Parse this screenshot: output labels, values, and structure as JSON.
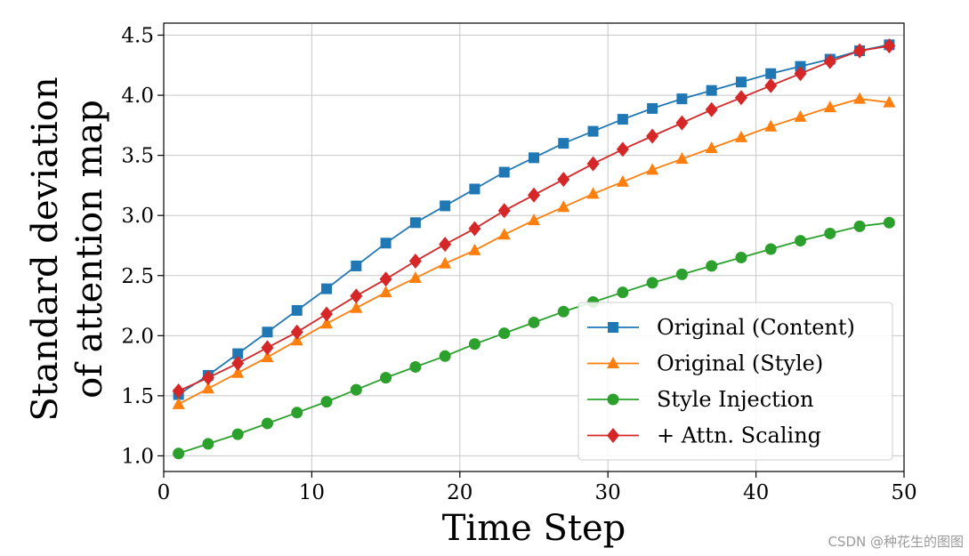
{
  "chart_data": {
    "type": "line",
    "title": "",
    "xlabel": "Time Step",
    "ylabel_lines": [
      "Standard deviation",
      "of attention map"
    ],
    "xlim": [
      0,
      50
    ],
    "ylim": [
      0.87,
      4.6
    ],
    "xticks": [
      0,
      10,
      20,
      30,
      40,
      50
    ],
    "yticks": [
      1.0,
      1.5,
      2.0,
      2.5,
      3.0,
      3.5,
      4.0,
      4.5
    ],
    "xtick_labels": [
      "0",
      "10",
      "20",
      "30",
      "40",
      "50"
    ],
    "ytick_labels": [
      "1.0",
      "1.5",
      "2.0",
      "2.5",
      "3.0",
      "3.5",
      "4.0",
      "4.5"
    ],
    "grid": true,
    "legend_position": "lower-right",
    "x": [
      1,
      3,
      5,
      7,
      9,
      11,
      13,
      15,
      17,
      19,
      21,
      23,
      25,
      27,
      29,
      31,
      33,
      35,
      37,
      39,
      41,
      43,
      45,
      47,
      49
    ],
    "series": [
      {
        "name": "Original (Content)",
        "color": "#1f77b4",
        "marker": "square",
        "values": [
          1.51,
          1.67,
          1.85,
          2.03,
          2.21,
          2.39,
          2.58,
          2.77,
          2.94,
          3.08,
          3.22,
          3.36,
          3.48,
          3.6,
          3.7,
          3.8,
          3.89,
          3.97,
          4.04,
          4.11,
          4.18,
          4.24,
          4.3,
          4.37,
          4.42
        ]
      },
      {
        "name": "Original (Style)",
        "color": "#ff7f0e",
        "marker": "triangle",
        "values": [
          1.43,
          1.56,
          1.69,
          1.82,
          1.96,
          2.1,
          2.23,
          2.36,
          2.48,
          2.6,
          2.71,
          2.84,
          2.96,
          3.07,
          3.18,
          3.28,
          3.38,
          3.47,
          3.56,
          3.65,
          3.74,
          3.82,
          3.9,
          3.97,
          3.94
        ]
      },
      {
        "name": "Style Injection",
        "color": "#2ca02c",
        "marker": "circle",
        "values": [
          1.02,
          1.1,
          1.18,
          1.27,
          1.36,
          1.45,
          1.55,
          1.65,
          1.74,
          1.83,
          1.93,
          2.02,
          2.11,
          2.2,
          2.28,
          2.36,
          2.44,
          2.51,
          2.58,
          2.65,
          2.72,
          2.79,
          2.85,
          2.91,
          2.94
        ]
      },
      {
        "name": "+ Attn. Scaling",
        "color": "#d62728",
        "marker": "diamond",
        "values": [
          1.54,
          1.65,
          1.77,
          1.9,
          2.03,
          2.18,
          2.33,
          2.47,
          2.62,
          2.76,
          2.89,
          3.04,
          3.17,
          3.3,
          3.43,
          3.55,
          3.66,
          3.77,
          3.88,
          3.98,
          4.08,
          4.18,
          4.28,
          4.37,
          4.41
        ]
      }
    ]
  },
  "watermark": "CSDN @种花生的图图"
}
